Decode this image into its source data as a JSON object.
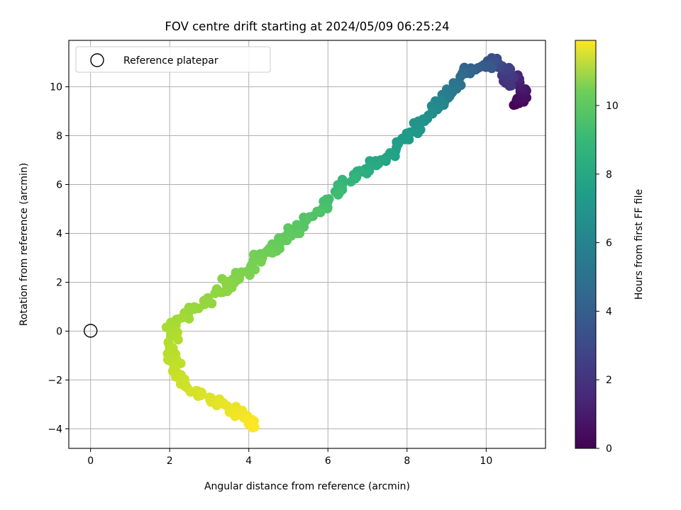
{
  "chart_data": {
    "type": "scatter",
    "title": "FOV centre drift starting at 2024/05/09 06:25:24",
    "xlabel": "Angular distance from reference (arcmin)",
    "ylabel": "Rotation from reference (arcmin)",
    "xlim": [
      -0.55,
      11.5
    ],
    "ylim": [
      -4.8,
      11.9
    ],
    "xticks": [
      0,
      2,
      4,
      6,
      8,
      10
    ],
    "yticks": [
      -4,
      -2,
      0,
      2,
      4,
      6,
      8,
      10
    ],
    "grid": true,
    "legend": {
      "position": "top-left",
      "entries": [
        "Reference platepar"
      ]
    },
    "reference_point": {
      "x": 0,
      "y": 0
    },
    "colorbar": {
      "label": "Hours from first FF file",
      "colormap": "viridis",
      "range": [
        0,
        11.9
      ],
      "ticks": [
        0,
        2,
        4,
        6,
        8,
        10
      ]
    },
    "path_anchors": [
      {
        "t": 0.0,
        "x": 10.75,
        "y": 9.3
      },
      {
        "t": 0.4,
        "x": 10.95,
        "y": 9.5
      },
      {
        "t": 0.8,
        "x": 10.95,
        "y": 10.1
      },
      {
        "t": 1.3,
        "x": 10.65,
        "y": 10.35
      },
      {
        "t": 1.8,
        "x": 10.6,
        "y": 10.15
      },
      {
        "t": 2.3,
        "x": 10.5,
        "y": 10.8
      },
      {
        "t": 2.8,
        "x": 10.25,
        "y": 11.1
      },
      {
        "t": 3.3,
        "x": 9.95,
        "y": 10.85
      },
      {
        "t": 3.8,
        "x": 9.55,
        "y": 10.7
      },
      {
        "t": 4.3,
        "x": 9.3,
        "y": 10.2
      },
      {
        "t": 5.0,
        "x": 9.05,
        "y": 9.7
      },
      {
        "t": 5.6,
        "x": 8.75,
        "y": 9.2
      },
      {
        "t": 6.0,
        "x": 8.45,
        "y": 8.7
      },
      {
        "t": 6.4,
        "x": 8.05,
        "y": 8.05
      },
      {
        "t": 6.9,
        "x": 7.5,
        "y": 7.1
      },
      {
        "t": 7.3,
        "x": 7.0,
        "y": 6.6
      },
      {
        "t": 7.9,
        "x": 6.5,
        "y": 6.1
      },
      {
        "t": 8.3,
        "x": 6.05,
        "y": 5.3
      },
      {
        "t": 8.6,
        "x": 5.6,
        "y": 4.65
      },
      {
        "t": 8.9,
        "x": 5.1,
        "y": 4.05
      },
      {
        "t": 9.1,
        "x": 4.7,
        "y": 3.55
      },
      {
        "t": 9.3,
        "x": 4.3,
        "y": 3.05
      },
      {
        "t": 9.5,
        "x": 3.95,
        "y": 2.45
      },
      {
        "t": 9.7,
        "x": 3.5,
        "y": 2.05
      },
      {
        "t": 9.85,
        "x": 3.3,
        "y": 1.6
      },
      {
        "t": 10.0,
        "x": 2.55,
        "y": 0.95
      },
      {
        "t": 10.3,
        "x": 2.1,
        "y": 0.3
      },
      {
        "t": 10.5,
        "x": 2.05,
        "y": -0.4
      },
      {
        "t": 10.7,
        "x": 2.1,
        "y": -1.2
      },
      {
        "t": 10.9,
        "x": 2.25,
        "y": -1.8
      },
      {
        "t": 11.1,
        "x": 2.55,
        "y": -2.4
      },
      {
        "t": 11.3,
        "x": 3.0,
        "y": -2.8
      },
      {
        "t": 11.5,
        "x": 3.5,
        "y": -3.1
      },
      {
        "t": 11.7,
        "x": 3.95,
        "y": -3.55
      },
      {
        "t": 11.9,
        "x": 4.1,
        "y": -3.95
      }
    ]
  }
}
